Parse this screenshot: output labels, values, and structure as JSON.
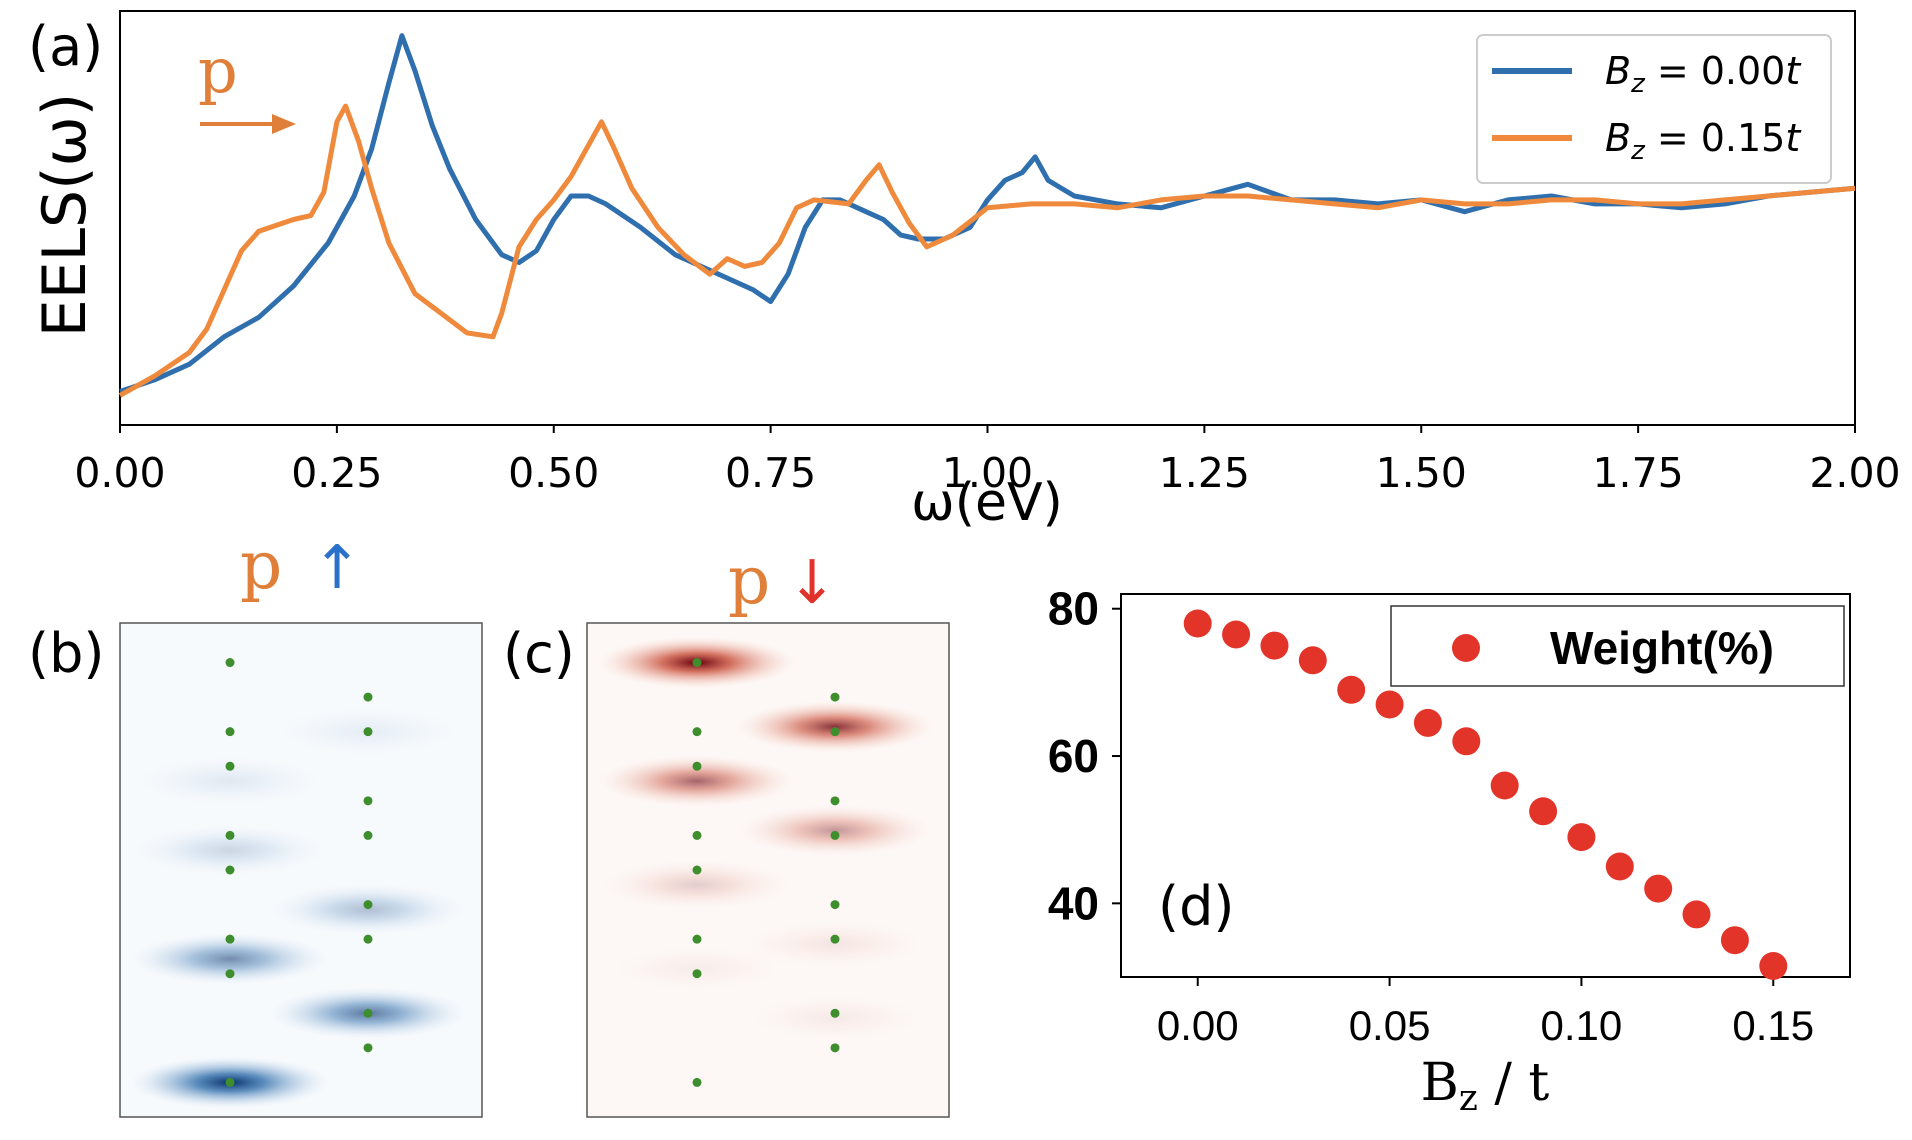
{
  "colors": {
    "blue": "#2f6fae",
    "orange": "#ef8a3c",
    "annotation_orange": "#e07f3a",
    "arrow_blue": "#2a72c9",
    "arrow_red": "#e0322a",
    "dot_green": "#3e8e2e",
    "weight_red": "#e3342a"
  },
  "panels": {
    "a_label": "(a)",
    "b_label": "(b)",
    "c_label": "(c)",
    "d_label": "(d)",
    "p_peak": "p",
    "p_up": "p",
    "p_down": "p",
    "up_arrow": "↑",
    "down_arrow": "↓",
    "right_arrow_icon": "orange-right-arrow"
  },
  "chart_data": [
    {
      "type": "line",
      "id": "a",
      "xlabel": "ω(eV)",
      "ylabel": "EELS(ω)",
      "xlim": [
        0,
        2
      ],
      "xticks": [
        "0.00",
        "0.25",
        "0.50",
        "0.75",
        "1.00",
        "1.25",
        "1.50",
        "1.75",
        "2.00"
      ],
      "ylim": [
        0,
        1
      ],
      "y_ticks_shown": false,
      "legend_position": "top-right",
      "legend": [
        {
          "prefix": "B",
          "sub": "z",
          "rest": " = 0.00",
          "suffix": "t"
        },
        {
          "prefix": "B",
          "sub": "z",
          "rest": " = 0.15",
          "suffix": "t"
        }
      ],
      "series": [
        {
          "color": "#2f6fae",
          "x": [
            0.0,
            0.04,
            0.08,
            0.12,
            0.16,
            0.2,
            0.24,
            0.27,
            0.29,
            0.31,
            0.325,
            0.34,
            0.36,
            0.38,
            0.41,
            0.44,
            0.46,
            0.48,
            0.5,
            0.52,
            0.54,
            0.56,
            0.6,
            0.64,
            0.67,
            0.7,
            0.73,
            0.75,
            0.77,
            0.79,
            0.81,
            0.83,
            0.86,
            0.88,
            0.9,
            0.92,
            0.95,
            0.98,
            1.0,
            1.02,
            1.04,
            1.055,
            1.07,
            1.1,
            1.15,
            1.2,
            1.25,
            1.3,
            1.35,
            1.4,
            1.45,
            1.5,
            1.55,
            1.6,
            1.65,
            1.7,
            1.75,
            1.8,
            1.85,
            1.9,
            1.95,
            2.0
          ],
          "y": [
            0.06,
            0.09,
            0.13,
            0.2,
            0.25,
            0.33,
            0.44,
            0.56,
            0.68,
            0.85,
            0.97,
            0.88,
            0.74,
            0.63,
            0.5,
            0.41,
            0.39,
            0.42,
            0.5,
            0.56,
            0.56,
            0.54,
            0.48,
            0.41,
            0.38,
            0.35,
            0.32,
            0.29,
            0.36,
            0.48,
            0.55,
            0.55,
            0.52,
            0.5,
            0.46,
            0.45,
            0.45,
            0.48,
            0.55,
            0.6,
            0.62,
            0.66,
            0.6,
            0.56,
            0.54,
            0.53,
            0.56,
            0.59,
            0.55,
            0.55,
            0.54,
            0.55,
            0.52,
            0.55,
            0.56,
            0.54,
            0.54,
            0.53,
            0.54,
            0.56,
            0.57,
            0.58
          ]
        },
        {
          "color": "#ef8a3c",
          "x": [
            0.0,
            0.04,
            0.08,
            0.1,
            0.12,
            0.14,
            0.16,
            0.2,
            0.22,
            0.235,
            0.25,
            0.26,
            0.275,
            0.29,
            0.31,
            0.34,
            0.37,
            0.4,
            0.43,
            0.44,
            0.46,
            0.48,
            0.5,
            0.52,
            0.54,
            0.555,
            0.57,
            0.59,
            0.62,
            0.65,
            0.68,
            0.7,
            0.72,
            0.74,
            0.76,
            0.78,
            0.8,
            0.84,
            0.86,
            0.875,
            0.89,
            0.91,
            0.93,
            0.96,
            1.0,
            1.05,
            1.1,
            1.15,
            1.2,
            1.25,
            1.3,
            1.35,
            1.4,
            1.45,
            1.5,
            1.55,
            1.6,
            1.65,
            1.7,
            1.75,
            1.8,
            1.85,
            1.9,
            1.95,
            2.0
          ],
          "y": [
            0.05,
            0.1,
            0.16,
            0.22,
            0.32,
            0.42,
            0.47,
            0.5,
            0.51,
            0.57,
            0.75,
            0.79,
            0.7,
            0.58,
            0.44,
            0.31,
            0.26,
            0.21,
            0.2,
            0.26,
            0.43,
            0.5,
            0.55,
            0.61,
            0.69,
            0.75,
            0.68,
            0.58,
            0.48,
            0.41,
            0.36,
            0.4,
            0.38,
            0.39,
            0.44,
            0.53,
            0.55,
            0.54,
            0.6,
            0.64,
            0.57,
            0.49,
            0.43,
            0.46,
            0.53,
            0.54,
            0.54,
            0.53,
            0.55,
            0.56,
            0.56,
            0.55,
            0.54,
            0.53,
            0.55,
            0.54,
            0.54,
            0.55,
            0.55,
            0.54,
            0.54,
            0.55,
            0.56,
            0.57,
            0.58
          ]
        }
      ]
    },
    {
      "type": "heatmap",
      "id": "b",
      "description_values": "spin-up weight per orbital site (blue)",
      "sites_left": [
        0.92,
        0.78,
        0.71,
        0.57,
        0.5,
        0.36,
        0.29,
        0.07
      ],
      "sites_right": [
        0.85,
        0.78,
        0.64,
        0.57,
        0.43,
        0.36,
        0.21,
        0.14
      ],
      "blobs": [
        {
          "col": "left",
          "y": 0.07,
          "intensity": 1.0
        },
        {
          "col": "left",
          "y": 0.32,
          "intensity": 0.55
        },
        {
          "col": "left",
          "y": 0.54,
          "intensity": 0.18
        },
        {
          "col": "left",
          "y": 0.68,
          "intensity": 0.09
        },
        {
          "col": "right",
          "y": 0.21,
          "intensity": 0.65
        },
        {
          "col": "right",
          "y": 0.42,
          "intensity": 0.3
        },
        {
          "col": "right",
          "y": 0.78,
          "intensity": 0.07
        }
      ]
    },
    {
      "type": "heatmap",
      "id": "c",
      "description_values": "spin-down weight per orbital site (red)",
      "sites_left": [
        0.92,
        0.78,
        0.71,
        0.57,
        0.5,
        0.36,
        0.29,
        0.07
      ],
      "sites_right": [
        0.85,
        0.78,
        0.64,
        0.57,
        0.43,
        0.36,
        0.21,
        0.14
      ],
      "blobs": [
        {
          "col": "left",
          "y": 0.92,
          "intensity": 1.0
        },
        {
          "col": "left",
          "y": 0.68,
          "intensity": 0.6
        },
        {
          "col": "left",
          "y": 0.47,
          "intensity": 0.18
        },
        {
          "col": "left",
          "y": 0.3,
          "intensity": 0.05
        },
        {
          "col": "right",
          "y": 0.79,
          "intensity": 0.8
        },
        {
          "col": "right",
          "y": 0.58,
          "intensity": 0.4
        },
        {
          "col": "right",
          "y": 0.35,
          "intensity": 0.08
        },
        {
          "col": "right",
          "y": 0.2,
          "intensity": 0.06
        }
      ]
    },
    {
      "type": "scatter",
      "id": "d",
      "xlabel_main": "B",
      "xlabel_sub": "z",
      "xlabel_rest": " / t",
      "ylabel": "",
      "xlim": [
        -0.02,
        0.17
      ],
      "ylim": [
        30,
        82
      ],
      "xticks": [
        "0.00",
        "0.05",
        "0.10",
        "0.15"
      ],
      "yticks": [
        "40",
        "60",
        "80"
      ],
      "legend_position": "top-right",
      "series": [
        {
          "name": "Weight(%)",
          "color": "#e3342a",
          "x": [
            0.0,
            0.01,
            0.02,
            0.03,
            0.04,
            0.05,
            0.06,
            0.07,
            0.08,
            0.09,
            0.1,
            0.11,
            0.12,
            0.13,
            0.14,
            0.15
          ],
          "y": [
            78,
            76.5,
            75,
            73,
            69,
            67,
            64.5,
            62,
            56,
            52.5,
            49,
            45,
            42,
            38.5,
            35,
            31.5
          ]
        }
      ]
    }
  ]
}
